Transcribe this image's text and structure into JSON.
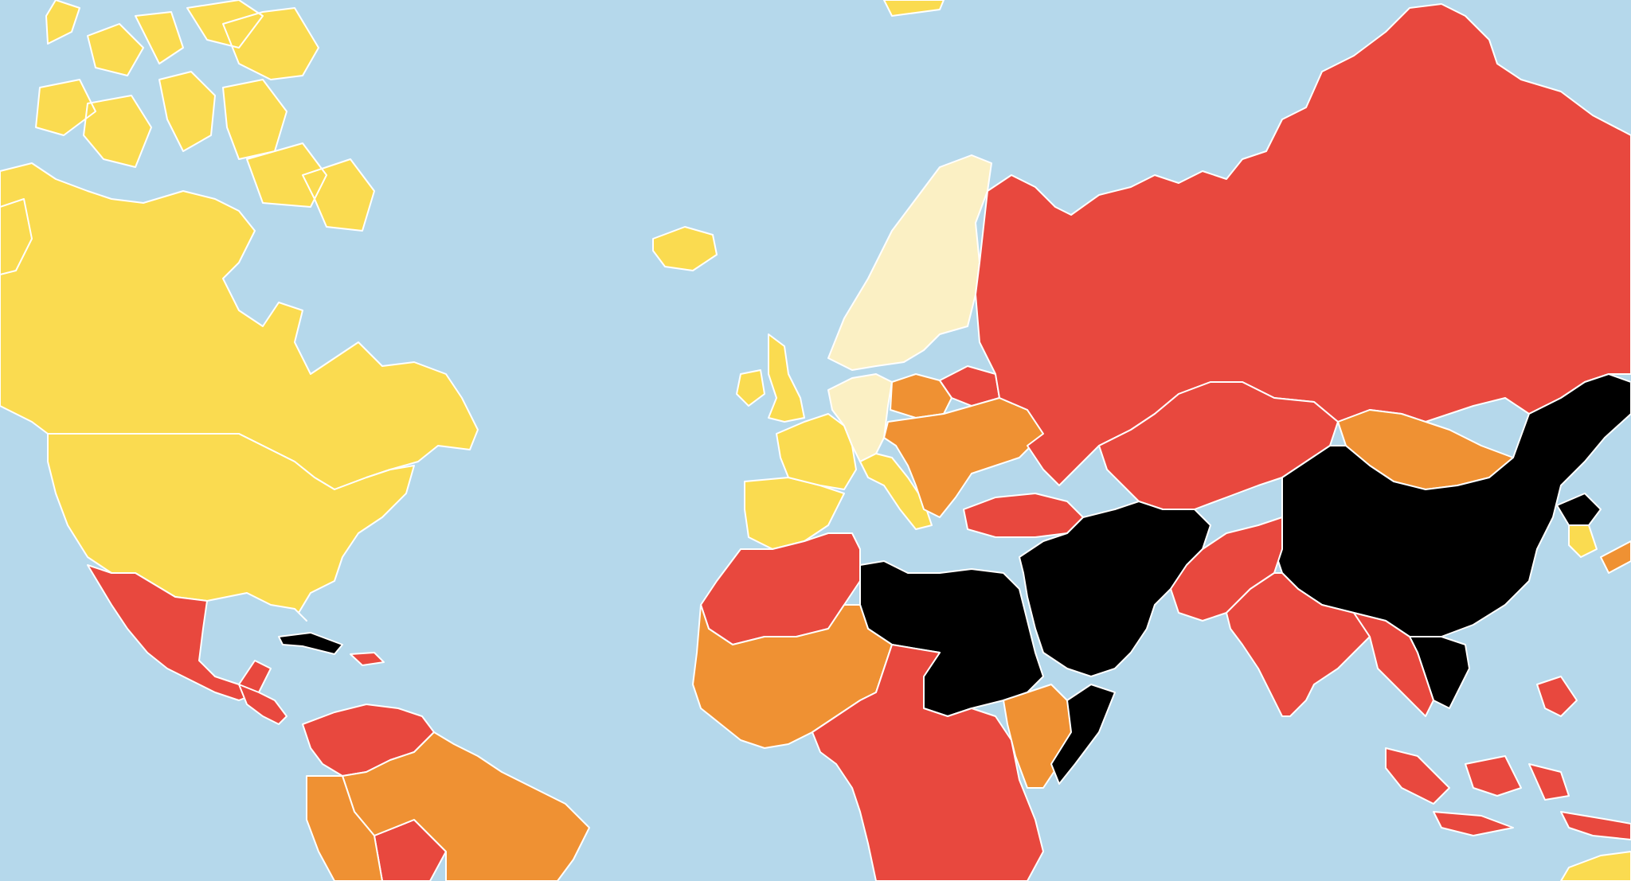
{
  "map": {
    "projection": "mercator",
    "colors": {
      "ocean": "#b5d8eb",
      "border": "#ffffff",
      "good": "#fbf0c4",
      "satisfactory": "#fadb50",
      "problematic": "#ef9133",
      "difficult": "#e8483e",
      "very_serious": "#000000"
    },
    "regions": [
      {
        "name": "canada",
        "category": "satisfactory"
      },
      {
        "name": "canadian-arctic-islands",
        "category": "satisfactory"
      },
      {
        "name": "greenland",
        "category": "satisfactory"
      },
      {
        "name": "alaska",
        "category": "satisfactory"
      },
      {
        "name": "united-states",
        "category": "satisfactory"
      },
      {
        "name": "mexico",
        "category": "difficult"
      },
      {
        "name": "cuba",
        "category": "very_serious"
      },
      {
        "name": "central-america",
        "category": "difficult"
      },
      {
        "name": "venezuela-colombia",
        "category": "difficult"
      },
      {
        "name": "brazil",
        "category": "problematic"
      },
      {
        "name": "andean-south-america",
        "category": "problematic"
      },
      {
        "name": "iceland",
        "category": "satisfactory"
      },
      {
        "name": "nordic-countries",
        "category": "good"
      },
      {
        "name": "british-isles",
        "category": "satisfactory"
      },
      {
        "name": "iberia",
        "category": "satisfactory"
      },
      {
        "name": "france",
        "category": "satisfactory"
      },
      {
        "name": "central-europe",
        "category": "good"
      },
      {
        "name": "italy",
        "category": "satisfactory"
      },
      {
        "name": "poland",
        "category": "problematic"
      },
      {
        "name": "belarus",
        "category": "difficult"
      },
      {
        "name": "ukraine-balkans",
        "category": "problematic"
      },
      {
        "name": "turkey",
        "category": "difficult"
      },
      {
        "name": "russia",
        "category": "difficult"
      },
      {
        "name": "kazakhstan-central-asia",
        "category": "difficult"
      },
      {
        "name": "mongolia",
        "category": "problematic"
      },
      {
        "name": "china",
        "category": "very_serious"
      },
      {
        "name": "north-korea",
        "category": "very_serious"
      },
      {
        "name": "south-korea",
        "category": "satisfactory"
      },
      {
        "name": "japan",
        "category": "problematic"
      },
      {
        "name": "middle-east",
        "category": "very_serious"
      },
      {
        "name": "pakistan-afghanistan",
        "category": "difficult"
      },
      {
        "name": "india",
        "category": "difficult"
      },
      {
        "name": "vietnam-laos",
        "category": "very_serious"
      },
      {
        "name": "southeast-asia",
        "category": "difficult"
      },
      {
        "name": "indonesia",
        "category": "difficult"
      },
      {
        "name": "maghreb",
        "category": "difficult"
      },
      {
        "name": "libya-egypt-sudan",
        "category": "very_serious"
      },
      {
        "name": "west-africa",
        "category": "problematic"
      },
      {
        "name": "central-africa",
        "category": "difficult"
      },
      {
        "name": "horn-of-africa",
        "category": "problematic"
      },
      {
        "name": "somalia",
        "category": "very_serious"
      },
      {
        "name": "australia",
        "category": "satisfactory"
      }
    ]
  }
}
